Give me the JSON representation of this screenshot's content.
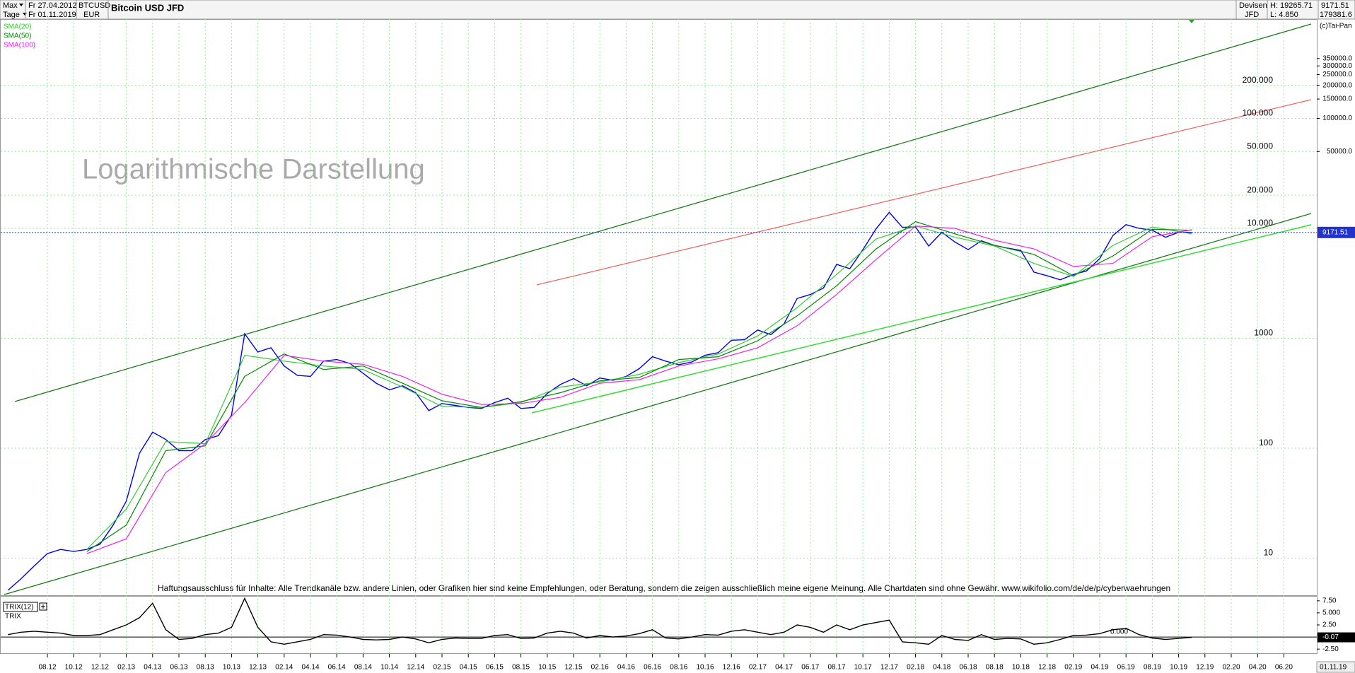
{
  "header": {
    "period": "Max",
    "interval": "Tage",
    "from": "Fr 27.04.2012",
    "to": "Fr 01.11.2019",
    "symbol": "BTCUSD",
    "currency": "EUR",
    "title": "Bitcoin USD JFD",
    "market": "Devisen",
    "broker": "JFD",
    "high": "H: 19265.71",
    "low": "L: 4.850",
    "close": "9171.51",
    "max_scale": "179381.6",
    "copyright": "(c)Tai-Pan"
  },
  "watermark": "Logarithmische Darstellung",
  "disclaimer": "Haftungsausschluss für Inhalte: Alle Trendkanäle bzw. andere Linien, oder Grafiken hier sind keine Empfehlungen, oder Beratung, sondern die zeigen ausschließlich meine eigene Meinung. Alle Chartdaten sind ohne Gewähr.  www.wikifolio.com/de/de/p/cyberwaehrungen",
  "chart_data": [
    {
      "type": "line",
      "log_y": true,
      "grid": true,
      "legend": "top-left",
      "ylim": [
        4.6,
        800000
      ],
      "yticks": [
        10,
        100,
        1000,
        {
          "value": 10000,
          "label": "10.000"
        },
        {
          "value": 20000,
          "label": "20.000"
        },
        {
          "value": 50000,
          "label": "50.000"
        },
        {
          "value": 100000,
          "label": "100.000"
        },
        {
          "value": 200000,
          "label": "200.000"
        }
      ],
      "y_right_ticks": [
        {
          "value": 50000,
          "label": "50000.0"
        },
        {
          "value": 100000,
          "label": "100000.0"
        },
        {
          "value": 150000,
          "label": "150000.0"
        },
        {
          "value": 200000,
          "label": "200000.0"
        },
        {
          "value": 250000,
          "label": "250000.0"
        },
        {
          "value": 300000,
          "label": "300000.0"
        },
        {
          "value": 350000,
          "label": "350000.0"
        }
      ],
      "current_label": "9171.51",
      "series": [
        {
          "color": "#0000ee",
          "x": [
            "05.12",
            "06.12",
            "07.12",
            "08.12",
            "09.12",
            "10.12",
            "11.12",
            "12.12",
            "01.13",
            "02.13",
            "03.13",
            "04.13",
            "05.13",
            "06.13",
            "07.13",
            "08.13",
            "09.13",
            "10.13",
            "11.13",
            "12.13",
            "01.14",
            "02.14",
            "03.14",
            "04.14",
            "05.14",
            "06.14",
            "07.14",
            "08.14",
            "09.14",
            "10.14",
            "11.14",
            "12.14",
            "01.15",
            "02.15",
            "03.15",
            "04.15",
            "05.15",
            "06.15",
            "07.15",
            "08.15",
            "09.15",
            "10.15",
            "11.15",
            "12.15",
            "01.16",
            "02.16",
            "03.16",
            "04.16",
            "05.16",
            "06.16",
            "07.16",
            "08.16",
            "09.16",
            "10.16",
            "11.16",
            "12.16",
            "01.17",
            "02.17",
            "03.17",
            "04.17",
            "05.17",
            "06.17",
            "07.17",
            "08.17",
            "09.17",
            "10.17",
            "11.17",
            "12.17",
            "01.18",
            "02.18",
            "03.18",
            "04.18",
            "05.18",
            "06.18",
            "07.18",
            "08.18",
            "09.18",
            "10.18",
            "11.18",
            "12.18",
            "01.19",
            "02.19",
            "03.19",
            "04.19",
            "05.19",
            "06.19",
            "07.19",
            "08.19",
            "09.19",
            "10.19",
            "11.19"
          ],
          "values": [
            5.1,
            6.5,
            8.5,
            11,
            12,
            11.5,
            12,
            13.4,
            20,
            33,
            90,
            140,
            120,
            95,
            95,
            120,
            130,
            200,
            1100,
            750,
            820,
            560,
            460,
            450,
            620,
            640,
            590,
            480,
            390,
            340,
            370,
            320,
            220,
            255,
            245,
            235,
            230,
            260,
            285,
            230,
            235,
            315,
            380,
            430,
            370,
            435,
            415,
            450,
            530,
            680,
            620,
            575,
            610,
            700,
            740,
            960,
            970,
            1190,
            1080,
            1350,
            2300,
            2500,
            2860,
            4700,
            4300,
            6400,
            9900,
            14000,
            10200,
            10300,
            6900,
            9200,
            7500,
            6400,
            7700,
            7000,
            6600,
            6300,
            4000,
            3700,
            3400,
            3800,
            4100,
            5300,
            8600,
            10800,
            10000,
            9600,
            8300,
            9200,
            9171.51
          ]
        },
        {
          "name": "SMA(20)",
          "color": "#33cc33",
          "x": [
            "11.12",
            "02.13",
            "05.13",
            "08.13",
            "11.13",
            "02.14",
            "05.14",
            "08.14",
            "11.14",
            "02.15",
            "05.15",
            "08.15",
            "11.15",
            "02.16",
            "05.16",
            "08.16",
            "11.16",
            "02.17",
            "05.17",
            "08.17",
            "11.17",
            "02.18",
            "05.18",
            "08.18",
            "11.18",
            "02.19",
            "05.19",
            "08.19",
            "11.19"
          ],
          "values": [
            12,
            28,
            115,
            110,
            700,
            620,
            560,
            520,
            360,
            240,
            235,
            260,
            360,
            400,
            470,
            600,
            720,
            1050,
            1900,
            3800,
            8000,
            10500,
            8300,
            6900,
            4800,
            3650,
            7000,
            10300,
            8900
          ]
        },
        {
          "name": "SMA(50)",
          "color": "#008800",
          "x": [
            "11.12",
            "02.13",
            "05.13",
            "08.13",
            "11.13",
            "02.14",
            "05.14",
            "08.14",
            "11.14",
            "02.15",
            "05.15",
            "08.15",
            "11.15",
            "02.16",
            "05.16",
            "08.16",
            "11.16",
            "02.17",
            "05.17",
            "08.17",
            "11.17",
            "02.18",
            "05.18",
            "08.18",
            "11.18",
            "02.19",
            "05.19",
            "08.19",
            "11.19"
          ],
          "values": [
            11.5,
            20,
            95,
            105,
            450,
            720,
            520,
            560,
            390,
            270,
            235,
            265,
            320,
            410,
            440,
            640,
            680,
            950,
            1600,
            3000,
            6500,
            11500,
            8900,
            7000,
            5800,
            3700,
            5600,
            9800,
            9600
          ]
        },
        {
          "name": "SMA(100)",
          "color": "#ee22ee",
          "x": [
            "11.12",
            "02.13",
            "05.13",
            "08.13",
            "11.13",
            "02.14",
            "05.14",
            "08.14",
            "11.14",
            "02.15",
            "05.15",
            "08.15",
            "11.15",
            "02.16",
            "05.16",
            "08.16",
            "11.16",
            "02.17",
            "05.17",
            "08.17",
            "11.17",
            "02.18",
            "05.18",
            "08.18",
            "11.18",
            "02.19",
            "05.19",
            "08.19",
            "11.19"
          ],
          "values": [
            11,
            15,
            60,
            110,
            260,
            700,
            620,
            580,
            450,
            310,
            250,
            255,
            290,
            390,
            420,
            560,
            650,
            820,
            1300,
            2500,
            5200,
            10500,
            10000,
            7800,
            6500,
            4500,
            4800,
            8400,
            9700
          ]
        }
      ]
    },
    {
      "type": "line",
      "title": "TRIX(12)",
      "subtitle": "TRIX",
      "grid": true,
      "ylim": [
        -3.5,
        8.5
      ],
      "yticks": [
        {
          "value": 7.5,
          "label": "7.50"
        },
        {
          "value": 5,
          "label": "5.000"
        },
        {
          "value": 2.5,
          "label": "2.50"
        },
        {
          "value": 0,
          "label": "0.000"
        },
        {
          "value": -2.5,
          "label": "-2.50"
        }
      ],
      "current_label": "-0.07",
      "xticks": [
        "08.12",
        "10.12",
        "12.12",
        "02.13",
        "04.13",
        "06.13",
        "08.13",
        "10.13",
        "12.13",
        "02.14",
        "04.14",
        "06.14",
        "08.14",
        "10.14",
        "12.14",
        "02.15",
        "04.15",
        "06.15",
        "08.15",
        "10.15",
        "12.15",
        "02.16",
        "04.16",
        "06.16",
        "08.16",
        "10.16",
        "12.16",
        "02.17",
        "04.17",
        "06.17",
        "08.17",
        "10.17",
        "12.17",
        "02.18",
        "04.18",
        "06.18",
        "08.18",
        "10.18",
        "12.18",
        "02.19",
        "04.19",
        "06.19",
        "08.19",
        "10.19",
        "12.19",
        "02.20",
        "04.20",
        "06.20"
      ],
      "end_date": "01.11.19",
      "series": [
        {
          "color": "#000000",
          "x": [
            "05.12",
            "06.12",
            "07.12",
            "08.12",
            "09.12",
            "10.12",
            "11.12",
            "12.12",
            "01.13",
            "02.13",
            "03.13",
            "04.13",
            "05.13",
            "06.13",
            "07.13",
            "08.13",
            "09.13",
            "10.13",
            "11.13",
            "12.13",
            "01.14",
            "02.14",
            "03.14",
            "04.14",
            "05.14",
            "06.14",
            "07.14",
            "08.14",
            "09.14",
            "10.14",
            "11.14",
            "12.14",
            "01.15",
            "02.15",
            "03.15",
            "04.15",
            "05.15",
            "06.15",
            "07.15",
            "08.15",
            "09.15",
            "10.15",
            "11.15",
            "12.15",
            "01.16",
            "02.16",
            "03.16",
            "04.16",
            "05.16",
            "06.16",
            "07.16",
            "08.16",
            "09.16",
            "10.16",
            "11.16",
            "12.16",
            "01.17",
            "02.17",
            "03.17",
            "04.17",
            "05.17",
            "06.17",
            "07.17",
            "08.17",
            "09.17",
            "10.17",
            "11.17",
            "12.17",
            "01.18",
            "02.18",
            "03.18",
            "04.18",
            "05.18",
            "06.18",
            "07.18",
            "08.18",
            "09.18",
            "10.18",
            "11.18",
            "12.18",
            "01.19",
            "02.19",
            "03.19",
            "04.19",
            "05.19",
            "06.19",
            "07.19",
            "08.19",
            "09.19",
            "10.19",
            "11.19"
          ],
          "values": [
            0.5,
            1,
            1.2,
            1,
            0.8,
            0.3,
            0.3,
            0.5,
            1.5,
            2.5,
            4,
            7,
            1.5,
            -0.5,
            -0.3,
            0.5,
            0.8,
            2,
            8,
            2,
            -1,
            -1.5,
            -1,
            -0.5,
            0.5,
            0.4,
            0,
            -0.5,
            -0.6,
            -0.5,
            0,
            -0.4,
            -1.2,
            -0.5,
            -0.2,
            -0.3,
            -0.3,
            0.3,
            0.5,
            -0.3,
            -0.2,
            0.8,
            1.2,
            0.8,
            -0.2,
            0.3,
            0,
            0.2,
            0.7,
            1.5,
            -0.2,
            -0.4,
            0,
            0.5,
            0.4,
            1.2,
            1.5,
            1,
            0.5,
            1,
            2.5,
            2,
            1,
            2.5,
            1.5,
            2.5,
            3,
            3.5,
            -1,
            -1.2,
            -1.5,
            0.3,
            -0.5,
            -0.7,
            0.5,
            -0.5,
            -0.3,
            -0.4,
            -1.5,
            -1.2,
            -0.5,
            0.3,
            0.4,
            0.7,
            1.5,
            1.8,
            0.5,
            -0.2,
            -0.5,
            -0.3,
            -0.07
          ]
        }
      ]
    }
  ]
}
